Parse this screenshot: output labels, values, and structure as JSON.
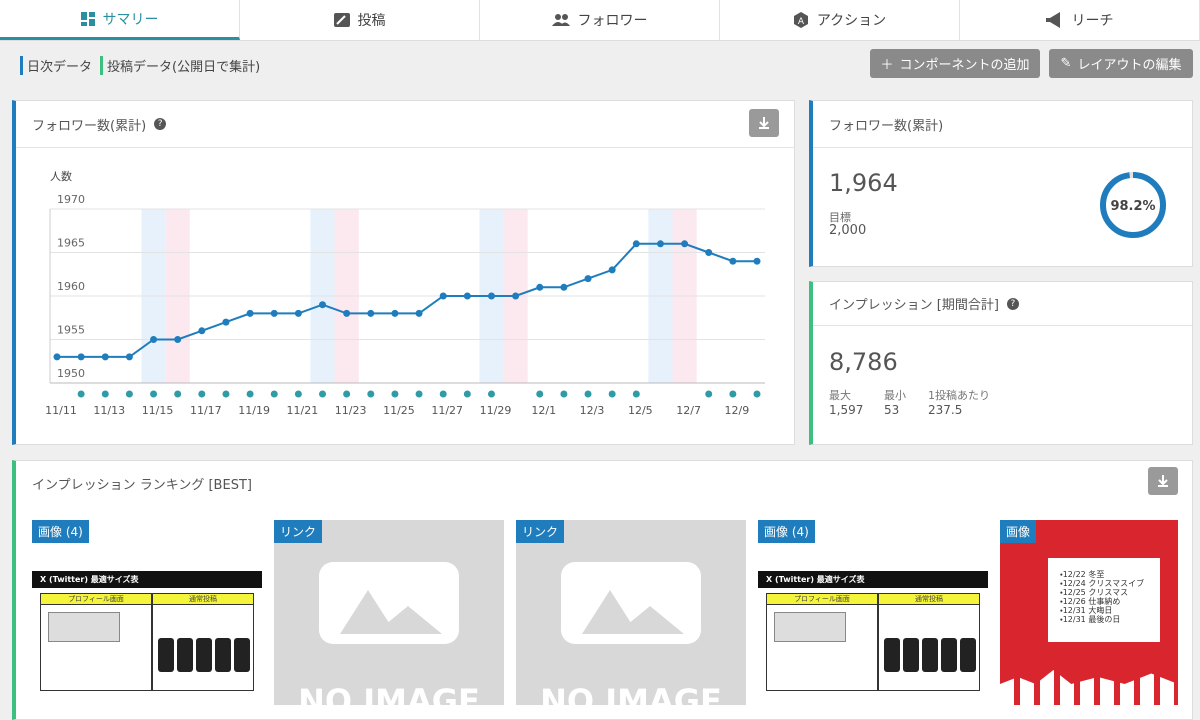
{
  "tabs": [
    "サマリー",
    "投稿",
    "フォロワー",
    "アクション",
    "リーチ"
  ],
  "toolbar": {
    "legend": [
      "日次データ",
      "投稿データ(公開日で集計)"
    ],
    "buttons": [
      "コンポーネントの追加",
      "レイアウトの編集"
    ]
  },
  "chart_data": {
    "type": "line",
    "title": "フォロワー数(累計)",
    "y_label": "人数",
    "categories": [
      "11/11",
      null,
      "11/13",
      null,
      "11/15",
      null,
      "11/17",
      null,
      "11/19",
      null,
      "11/21",
      null,
      "11/23",
      null,
      "11/25",
      null,
      "11/27",
      null,
      "11/29",
      null,
      "12/1",
      null,
      "12/3",
      null,
      "12/5",
      null,
      "12/7",
      null,
      "12/9",
      null
    ],
    "values": [
      1953,
      1953,
      1953,
      1953,
      1955,
      1955,
      1956,
      1957,
      1958,
      1958,
      1958,
      1959,
      1958,
      1958,
      1958,
      1958,
      1960,
      1960,
      1960,
      1960,
      1961,
      1961,
      1962,
      1963,
      1966,
      1966,
      1966,
      1965,
      1964,
      1964
    ],
    "color": "#1f7dbd",
    "post_markers": [
      false,
      true,
      true,
      true,
      true,
      true,
      true,
      true,
      true,
      true,
      true,
      true,
      true,
      true,
      true,
      true,
      true,
      true,
      true,
      false,
      true,
      true,
      true,
      true,
      true,
      false,
      false,
      true,
      true,
      true
    ],
    "post_marker_color": "#2e9ba6",
    "day_shading": [
      null,
      null,
      null,
      null,
      "#e7f1fc",
      "#fce8ef",
      null,
      null,
      null,
      null,
      null,
      "#e7f1fc",
      "#fce8ef",
      null,
      null,
      null,
      null,
      null,
      "#e7f1fc",
      "#fce8ef",
      null,
      null,
      null,
      null,
      null,
      "#e7f1fc",
      "#fce8ef",
      null,
      null,
      null
    ],
    "ylim": [
      1950,
      1970
    ],
    "yticks": [
      1950,
      1955,
      1960,
      1965,
      1970
    ],
    "grid": true
  },
  "follower_card": {
    "title": "フォロワー数(累計)",
    "value": "1,964",
    "goal_label": "目標",
    "goal": "2,000",
    "progress": {
      "value": 98.2,
      "label": "98.2%"
    }
  },
  "impression_card": {
    "title": "インプレッション [期間合計]",
    "value": "8,786",
    "stats": [
      {
        "label": "最大",
        "value": "1,597"
      },
      {
        "label": "最小",
        "value": "53"
      },
      {
        "label": "1投稿あたり",
        "value": "237.5"
      }
    ]
  },
  "ranking": {
    "title": "インプレッション ランキング [BEST]",
    "cards": [
      {
        "badge": "画像 (4)",
        "header": "X (Twitter) 最適サイズ表",
        "columns": [
          "プロフィール画面",
          "通常投稿"
        ]
      },
      {
        "badge": "リンク",
        "placeholder": "NO IMAGE"
      },
      {
        "badge": "リンク",
        "placeholder": "NO IMAGE"
      },
      {
        "badge": "画像 (4)",
        "header": "X (Twitter) 最適サイズ表",
        "columns": [
          "プロフィール画面",
          "通常投稿"
        ]
      },
      {
        "badge": "画像",
        "lines": [
          "・12/22 冬至",
          "・12/24 クリスマスイブ",
          "・12/25 クリスマス",
          "・12/26 仕事納め",
          "・12/31 大晦日",
          "・12/31 最後の日"
        ]
      }
    ]
  }
}
